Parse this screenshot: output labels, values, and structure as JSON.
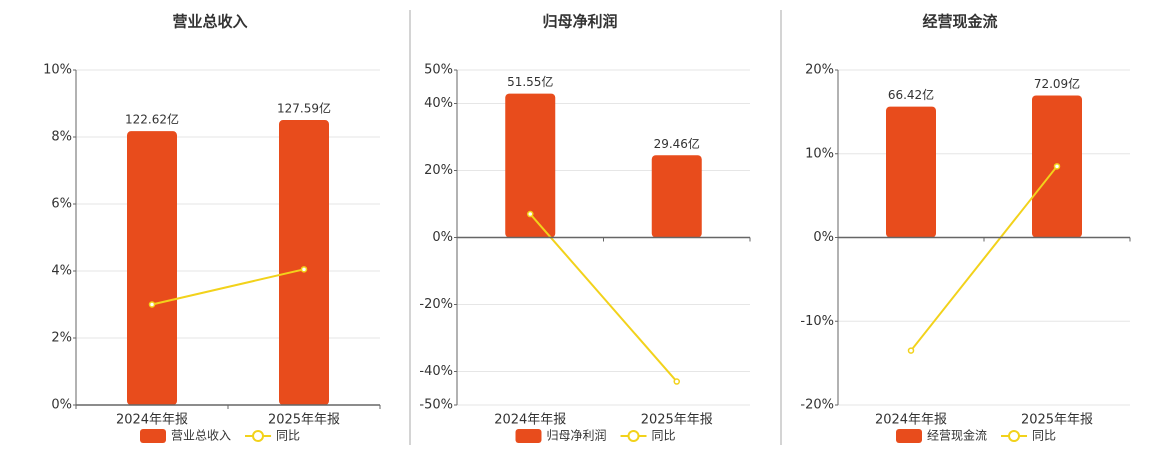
{
  "chart_data": [
    {
      "type": "bar",
      "title": "营业总收入",
      "categories": [
        "2024年年报",
        "2025年年报"
      ],
      "series": [
        {
          "name": "营业总收入",
          "color": "#e84c1c",
          "axis": "y2",
          "values": [
            122.62,
            127.59
          ],
          "value_labels": [
            "122.62亿",
            "127.59亿"
          ]
        },
        {
          "name": "同比",
          "type": "line",
          "color": "#f2d21b",
          "values": [
            3.0,
            4.05
          ]
        }
      ],
      "ylim": [
        0,
        10
      ],
      "yticks": [
        {
          "value": 0,
          "label": "0%"
        },
        {
          "value": 2,
          "label": "2%"
        },
        {
          "value": 4,
          "label": "4%"
        },
        {
          "value": 6,
          "label": "6%"
        },
        {
          "value": 8,
          "label": "8%"
        },
        {
          "value": 10,
          "label": "10%"
        }
      ],
      "y2lim": [
        0,
        150
      ],
      "grid": true,
      "legend": "bottom"
    },
    {
      "type": "bar",
      "title": "归母净利润",
      "categories": [
        "2024年年报",
        "2025年年报"
      ],
      "series": [
        {
          "name": "归母净利润",
          "color": "#e84c1c",
          "axis": "y2",
          "values": [
            51.55,
            29.46
          ],
          "value_labels": [
            "51.55亿",
            "29.46亿"
          ]
        },
        {
          "name": "同比",
          "type": "line",
          "color": "#f2d21b",
          "values": [
            7,
            -43
          ]
        }
      ],
      "ylim": [
        -50,
        50
      ],
      "yticks": [
        {
          "value": -50,
          "label": "-50%"
        },
        {
          "value": -40,
          "label": "-40%"
        },
        {
          "value": -20,
          "label": "-20%"
        },
        {
          "value": 0,
          "label": "0%"
        },
        {
          "value": 20,
          "label": "20%"
        },
        {
          "value": 40,
          "label": "40%"
        },
        {
          "value": 50,
          "label": "50%"
        }
      ],
      "y2lim": [
        -60,
        60
      ],
      "grid": true,
      "legend": "bottom"
    },
    {
      "type": "bar",
      "title": "经营现金流",
      "categories": [
        "2024年年报",
        "2025年年报"
      ],
      "series": [
        {
          "name": "经营现金流",
          "color": "#e84c1c",
          "axis": "y2",
          "values": [
            66.42,
            72.09
          ],
          "value_labels": [
            "66.42亿",
            "72.09亿"
          ]
        },
        {
          "name": "同比",
          "type": "line",
          "color": "#f2d21b",
          "values": [
            -13.5,
            8.5
          ]
        }
      ],
      "ylim": [
        -20,
        20
      ],
      "yticks": [
        {
          "value": -20,
          "label": "-20%"
        },
        {
          "value": -10,
          "label": "-10%"
        },
        {
          "value": 0,
          "label": "0%"
        },
        {
          "value": 10,
          "label": "10%"
        },
        {
          "value": 20,
          "label": "20%"
        }
      ],
      "y2lim": [
        -85,
        85
      ],
      "grid": true,
      "legend": "bottom"
    }
  ]
}
